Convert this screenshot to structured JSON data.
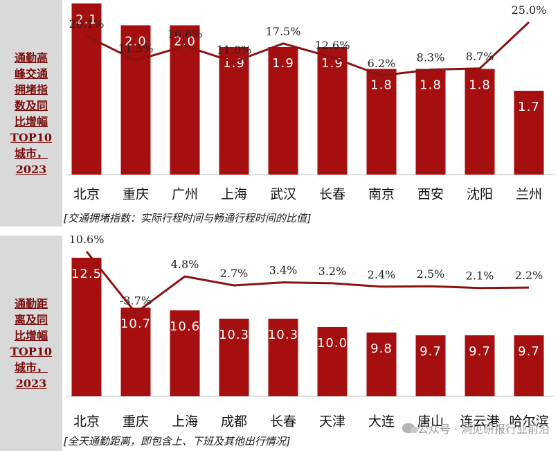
{
  "colors": {
    "bar": "#a50f0f",
    "line": "#8b1212",
    "side_text": "#7a0c0c"
  },
  "panels": [
    {
      "side_label": "通勤高\n峰交通\n拥堵指\n数及同\n比增幅\nTOP10\n城市，\n2023",
      "note": "[交通拥堵指数：实际行程时间与畅通行程时间的比值]"
    },
    {
      "side_label": "通勤距\n离及同\n比增幅\nTOP10\n城市，\n2023",
      "note": "[全天通勤距离，即包含上、下班及其他出行情况]"
    }
  ],
  "watermark": {
    "icon": "wechat-icon",
    "text": "公众号 · 洞见研报行业前沿"
  },
  "chart_data": [
    {
      "type": "bar",
      "categories": [
        "北京",
        "重庆",
        "广州",
        "上海",
        "武汉",
        "长春",
        "南京",
        "西安",
        "沈阳",
        "兰州"
      ],
      "values": [
        2.1,
        2.0,
        2.0,
        1.9,
        1.9,
        1.9,
        1.8,
        1.8,
        1.8,
        1.7
      ],
      "value_labels": [
        "2.1",
        "2.0",
        "2.0",
        "1.9",
        "1.9",
        "1.9",
        "1.8",
        "1.8",
        "1.8",
        "1.7"
      ],
      "line_values": [
        20.1,
        11.5,
        16.6,
        11.0,
        17.5,
        12.6,
        6.2,
        8.3,
        8.7,
        25.0
      ],
      "line_labels": [
        "20.1%",
        "11.5%",
        "16.6%",
        "11.0%",
        "17.5%",
        "12.6%",
        "6.2%",
        "8.3%",
        "8.7%",
        "25.0%"
      ]
    },
    {
      "type": "bar",
      "categories": [
        "北京",
        "重庆",
        "上海",
        "成都",
        "长春",
        "天津",
        "大连",
        "唐山",
        "连云港",
        "哈尔滨"
      ],
      "values": [
        12.5,
        10.7,
        10.6,
        10.3,
        10.3,
        10.0,
        9.8,
        9.7,
        9.7,
        9.7
      ],
      "value_labels": [
        "12.5",
        "10.7",
        "10.6",
        "10.3",
        "10.3",
        "10.0",
        "9.8",
        "9.7",
        "9.7",
        "9.7"
      ],
      "line_values": [
        10.6,
        -3.7,
        4.8,
        2.7,
        3.4,
        3.2,
        2.4,
        2.5,
        2.1,
        2.2
      ],
      "line_labels": [
        "10.6%",
        "-3.7%",
        "4.8%",
        "2.7%",
        "3.4%",
        "3.2%",
        "2.4%",
        "2.5%",
        "2.1%",
        "2.2%"
      ]
    }
  ]
}
